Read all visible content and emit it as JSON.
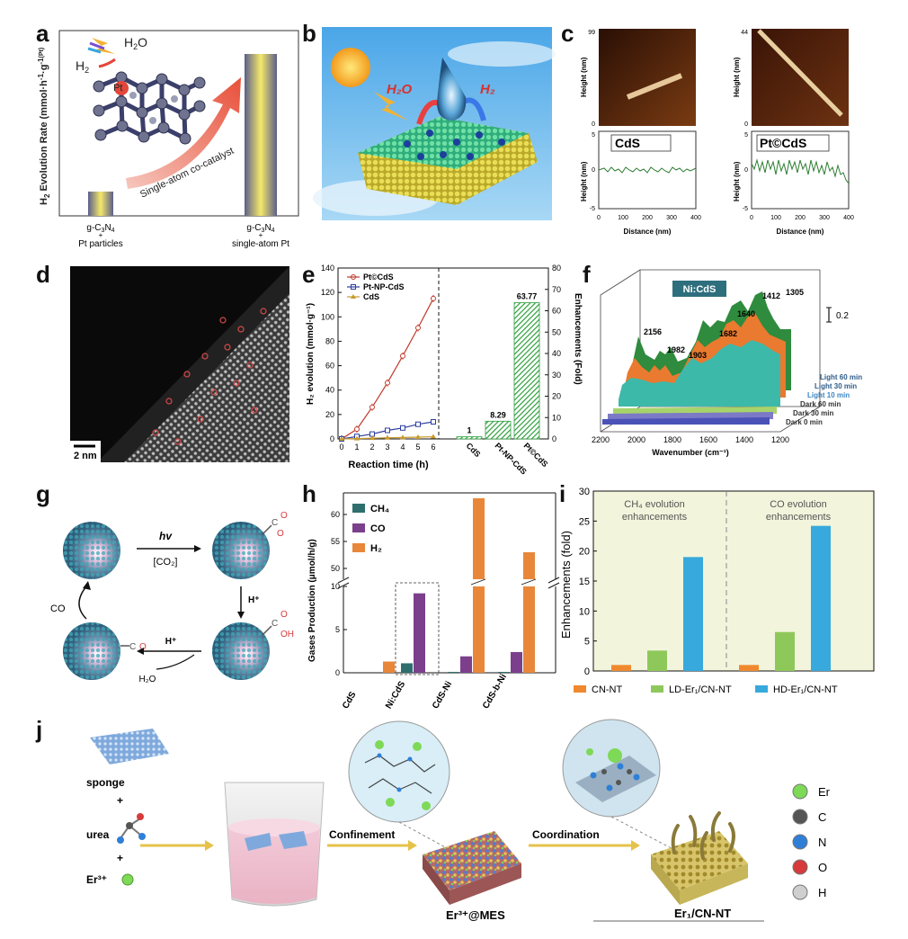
{
  "panel_letters": [
    "a",
    "b",
    "c",
    "d",
    "e",
    "f",
    "g",
    "h",
    "i",
    "j"
  ],
  "panel_a": {
    "ylabel_main": "H",
    "ylabel_sub": "2",
    "ylabel_rest": " Evolution Rate (mmol·h",
    "ylabel_tail": "·g",
    "ylabel_pt": "(Pt)",
    "h2o": "H",
    "h2o_sub": "2",
    "h2o_o": "O",
    "h2": "H",
    "h2_sub": "2",
    "pt_label": "Pt",
    "arrow_text": "Single-atom co-catalyst",
    "bar1_line1": "g-C",
    "bar1_sub": "3",
    "bar1_n": "N",
    "bar1_sub2": "4",
    "bar1_plus": "+",
    "bar1_line3": "Pt particles",
    "bar2_line1": "g-C",
    "bar2_sub": "3",
    "bar2_n": "N",
    "bar2_sub2": "4",
    "bar2_plus": "+",
    "bar2_line3": "single-atom Pt",
    "chart_data": {
      "type": "bar",
      "categories": [
        "g-C3N4 + Pt particles",
        "g-C3N4 + single-atom Pt"
      ],
      "values": [
        0.13,
        1.0
      ]
    }
  },
  "panel_b": {
    "h2o_label": "H₂O",
    "h2_label": "H₂"
  },
  "panel_c": {
    "left": {
      "top_max": "99",
      "top_min": "0",
      "height_label": "Height (nm)",
      "title": "CdS",
      "y_ticks": [
        "5",
        "0",
        "-5"
      ],
      "x_ticks": [
        "0",
        "100",
        "200",
        "300",
        "400"
      ],
      "xlabel": "Distance (nm)"
    },
    "right": {
      "top_max": "44",
      "top_min": "0",
      "height_label": "Height (nm)",
      "title": "Pt©CdS",
      "y_ticks": [
        "5",
        "0",
        "-5"
      ],
      "x_ticks": [
        "0",
        "100",
        "200",
        "300",
        "400"
      ],
      "xlabel": "Distance (nm)"
    }
  },
  "panel_d": {
    "scale_label": "2 nm"
  },
  "panel_e": {
    "ylabel_left": "H₂ evolution (mmol·g⁻¹)",
    "ylabel_right": "Enhancements (Fold)",
    "xlabel": "Reaction time (h)",
    "left_ticks": [
      "0",
      "20",
      "40",
      "60",
      "80",
      "100",
      "120",
      "140"
    ],
    "right_ticks": [
      "0",
      "10",
      "20",
      "30",
      "40",
      "50",
      "60",
      "70",
      "80"
    ],
    "x_ticks": [
      "0",
      "1",
      "2",
      "3",
      "4",
      "5",
      "6"
    ],
    "bar_categories": [
      "CdS",
      "Pt-NP-CdS",
      "Pt©CdS"
    ],
    "bar_labels": [
      "1",
      "8.29",
      "63.77"
    ],
    "chart_data": [
      {
        "type": "line",
        "xlabel": "Reaction time (h)",
        "ylabel": "H₂ evolution (mmol·g⁻¹)",
        "x": [
          0,
          1,
          2,
          3,
          4,
          5,
          6
        ],
        "ylim": [
          0,
          140
        ],
        "series": [
          {
            "name": "Pt©CdS",
            "color": "#c0392b",
            "values": [
              0,
              8,
              26,
              46,
              68,
              91,
              115
            ]
          },
          {
            "name": "Pt-NP-CdS",
            "color": "#2c3e9e",
            "values": [
              0,
              2,
              4,
              7,
              9,
              12,
              14
            ]
          },
          {
            "name": "CdS",
            "color": "#c99a2e",
            "values": [
              0,
              0.3,
              0.6,
              0.9,
              1.2,
              1.5,
              1.8
            ]
          }
        ]
      },
      {
        "type": "bar",
        "ylabel": "Enhancements (Fold)",
        "categories": [
          "CdS",
          "Pt-NP-CdS",
          "Pt©CdS"
        ],
        "values": [
          1,
          8.29,
          63.77
        ],
        "ylim": [
          0,
          80
        ]
      }
    ]
  },
  "panel_f": {
    "label_box": "Ni:CdS",
    "xlabel": "Wavenumber (cm⁻¹)",
    "x_ticks": [
      "2200",
      "2000",
      "1800",
      "1600",
      "1400",
      "1200"
    ],
    "peaks": [
      "2156",
      "1982",
      "1903",
      "1682",
      "1640",
      "1412",
      "1305"
    ],
    "scale": "0.2",
    "legend": [
      "Light 60 min",
      "Light 30 min",
      "Light 10 min",
      "Dark 60 min",
      "Dark 30 min",
      "Dark 0 min"
    ]
  },
  "panel_g": {
    "hv": "hv",
    "co2": "[CO₂]",
    "hplus1": "H⁺",
    "hplus2": "H⁺",
    "h2o": "H₂O",
    "co": "CO"
  },
  "panel_h": {
    "ylabel": "Gases Production (μmol/h/g)",
    "y_ticks_low": [
      "0",
      "5",
      "10"
    ],
    "y_ticks_high": [
      "50",
      "55",
      "60"
    ],
    "legend": [
      "CH₄",
      "CO",
      "H₂"
    ],
    "categories": [
      "CdS",
      "Ni:CdS",
      "CdS-Ni",
      "CdS-b-Ni"
    ],
    "colors": {
      "CH4": "#2e6f6e",
      "CO": "#7b3f8c",
      "H2": "#e8873a"
    },
    "chart_data": {
      "type": "bar",
      "ylabel": "Gases Production (μmol/h/g)",
      "categories": [
        "CdS",
        "Ni:CdS",
        "CdS-Ni",
        "CdS-b-Ni"
      ],
      "series": [
        {
          "name": "CH₄",
          "values": [
            0,
            1.1,
            0.1,
            0.1
          ]
        },
        {
          "name": "CO",
          "values": [
            0,
            9.2,
            1.9,
            2.4
          ]
        },
        {
          "name": "H₂",
          "values": [
            1.3,
            0,
            63,
            53
          ]
        }
      ]
    }
  },
  "panel_i": {
    "ylabel": "Enhancements (fold)",
    "y_ticks": [
      "0",
      "5",
      "10",
      "15",
      "20",
      "25",
      "30"
    ],
    "section_left": "CH₄ evolution\nenhancements",
    "section_left_1": "CH₄ evolution",
    "section_left_2": "enhancements",
    "section_right_1": "CO evolution",
    "section_right_2": "enhancements",
    "legend": [
      "CN-NT",
      "LD-Er₁/CN-NT",
      "HD-Er₁/CN-NT"
    ],
    "colors": [
      "#f0892e",
      "#8fc85a",
      "#37a9dc"
    ],
    "chart_data": {
      "type": "bar",
      "ylabel": "Enhancements (fold)",
      "ylim": [
        0,
        30
      ],
      "categories": [
        "CH₄ evolution enhancements",
        "CO evolution enhancements"
      ],
      "series": [
        {
          "name": "CN-NT",
          "values": [
            1,
            1
          ]
        },
        {
          "name": "LD-Er₁/CN-NT",
          "values": [
            3.4,
            6.5
          ]
        },
        {
          "name": "HD-Er₁/CN-NT",
          "values": [
            19,
            24.2
          ]
        }
      ]
    }
  },
  "panel_j": {
    "sponge": "sponge",
    "plus1": "+",
    "urea": "urea",
    "plus2": "+",
    "er": "Er³⁺",
    "confinement": "Confinement",
    "coordination": "Coordination",
    "mes": "Er³⁺@MES",
    "product": "Er₁/CN-NT",
    "legend": [
      "Er",
      "C",
      "N",
      "O",
      "H"
    ],
    "legend_colors": [
      "#7ed957",
      "#555555",
      "#2f7fd6",
      "#d63a3a",
      "#cfcfcf"
    ]
  }
}
